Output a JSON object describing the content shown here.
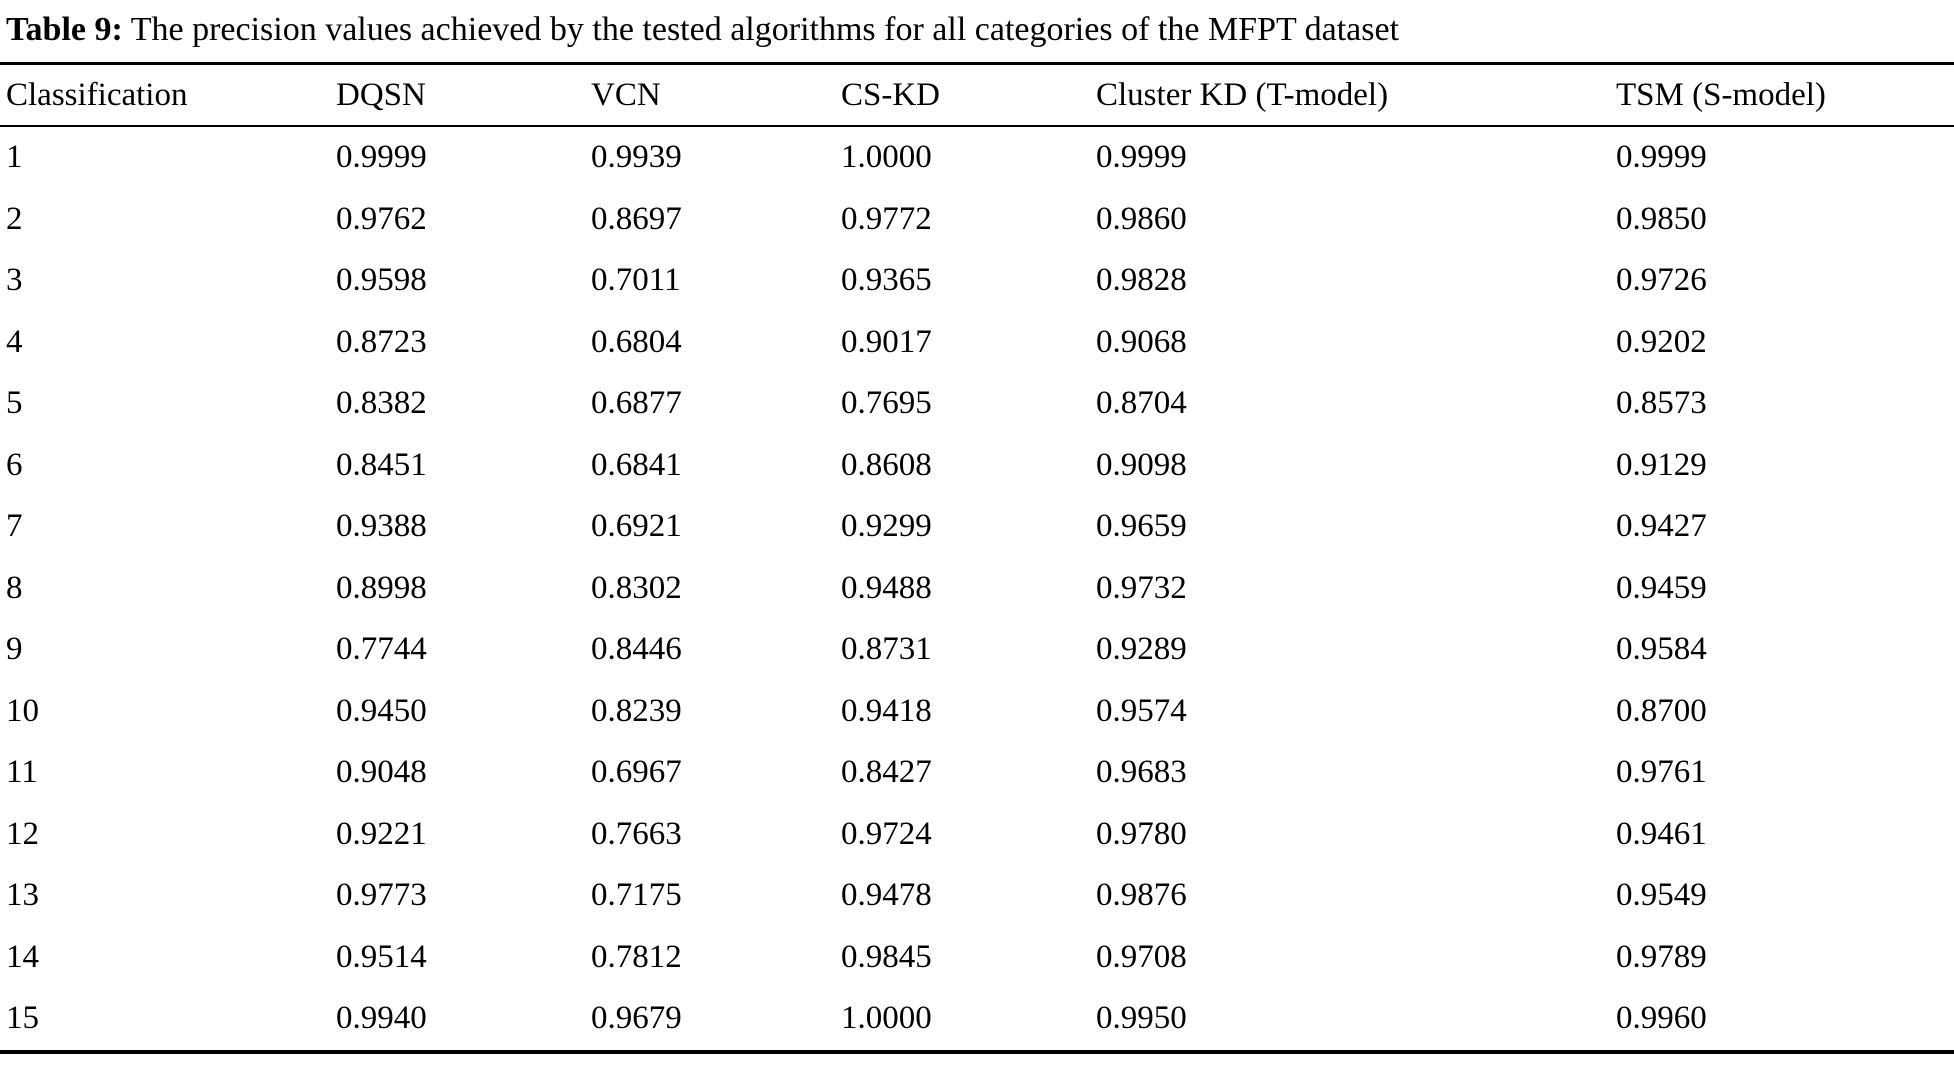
{
  "caption": {
    "label": "Table 9:",
    "text": " The precision values achieved by the tested algorithms for all categories of the MFPT dataset"
  },
  "table": {
    "columns": [
      "Classification",
      "DQSN",
      "VCN",
      "CS-KD",
      "Cluster KD (T-model)",
      "TSM (S-model)"
    ],
    "rows": [
      [
        "1",
        "0.9999",
        "0.9939",
        "1.0000",
        "0.9999",
        "0.9999"
      ],
      [
        "2",
        "0.9762",
        "0.8697",
        "0.9772",
        "0.9860",
        "0.9850"
      ],
      [
        "3",
        "0.9598",
        "0.7011",
        "0.9365",
        "0.9828",
        "0.9726"
      ],
      [
        "4",
        "0.8723",
        "0.6804",
        "0.9017",
        "0.9068",
        "0.9202"
      ],
      [
        "5",
        "0.8382",
        "0.6877",
        "0.7695",
        "0.8704",
        "0.8573"
      ],
      [
        "6",
        "0.8451",
        "0.6841",
        "0.8608",
        "0.9098",
        "0.9129"
      ],
      [
        "7",
        "0.9388",
        "0.6921",
        "0.9299",
        "0.9659",
        "0.9427"
      ],
      [
        "8",
        "0.8998",
        "0.8302",
        "0.9488",
        "0.9732",
        "0.9459"
      ],
      [
        "9",
        "0.7744",
        "0.8446",
        "0.8731",
        "0.9289",
        "0.9584"
      ],
      [
        "10",
        "0.9450",
        "0.8239",
        "0.9418",
        "0.9574",
        "0.8700"
      ],
      [
        "11",
        "0.9048",
        "0.6967",
        "0.8427",
        "0.9683",
        "0.9761"
      ],
      [
        "12",
        "0.9221",
        "0.7663",
        "0.9724",
        "0.9780",
        "0.9461"
      ],
      [
        "13",
        "0.9773",
        "0.7175",
        "0.9478",
        "0.9876",
        "0.9549"
      ],
      [
        "14",
        "0.9514",
        "0.7812",
        "0.9845",
        "0.9708",
        "0.9789"
      ],
      [
        "15",
        "0.9940",
        "0.9679",
        "1.0000",
        "0.9950",
        "0.9960"
      ]
    ]
  }
}
